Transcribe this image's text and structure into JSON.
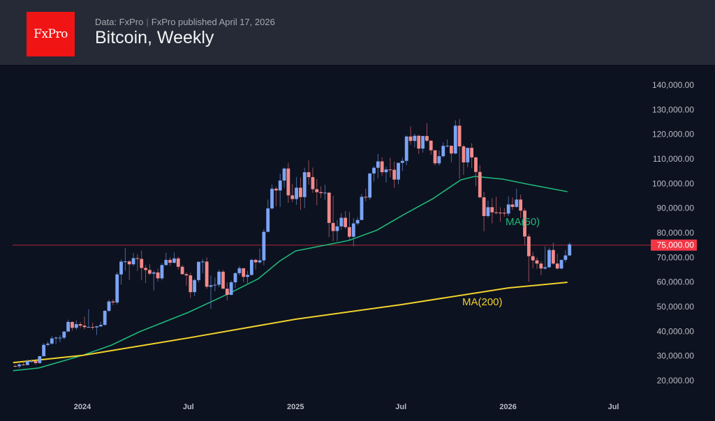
{
  "header": {
    "logo_text": "FxPro",
    "source": "Data: FxPro",
    "published": "FxPro published April 17, 2026",
    "title": "Bitcoin, Weekly"
  },
  "chart_data": {
    "type": "candlestick",
    "title": "Bitcoin, Weekly",
    "ylim": [
      15000,
      145000
    ],
    "y_axis_position": "right",
    "y_ticks": [
      20000,
      30000,
      40000,
      50000,
      60000,
      70000,
      80000,
      90000,
      100000,
      110000,
      120000,
      130000,
      140000
    ],
    "y_tick_labels": [
      "20,000.00",
      "30,000.00",
      "40,000.00",
      "50,000.00",
      "60,000.00",
      "70,000.00",
      "80,000.00",
      "90,000.00",
      "100,000.00",
      "110,000.00",
      "120,000.00",
      "130,000.00",
      "140,000.00"
    ],
    "x_ticks": [
      {
        "date": "2024-01-01",
        "label": "2024"
      },
      {
        "date": "2024-07-01",
        "label": "Jul"
      },
      {
        "date": "2025-01-01",
        "label": "2025"
      },
      {
        "date": "2025-07-01",
        "label": "Jul"
      },
      {
        "date": "2026-01-01",
        "label": "2026"
      },
      {
        "date": "2026-07-01",
        "label": "Jul"
      }
    ],
    "grid": false,
    "colors": {
      "up": "#7ba4f5",
      "down": "#f38a8a",
      "up_wick": "#4c6a9e",
      "down_wick": "#9a4d55",
      "ma50": "#1fb87a",
      "ma200": "#f2d22c",
      "level": "#8b2431",
      "level_label_bg": "#f23645"
    },
    "horizontal_level": {
      "value": 75000,
      "label": "75,000.00"
    },
    "candle_fields": [
      "week",
      "open",
      "high",
      "low",
      "close"
    ],
    "candles": [
      [
        "2023-09-04",
        25900,
        26400,
        25400,
        25800
      ],
      [
        "2023-09-11",
        25800,
        27000,
        25000,
        26500
      ],
      [
        "2023-09-18",
        26500,
        27400,
        26000,
        26300
      ],
      [
        "2023-09-25",
        26300,
        28600,
        26100,
        27900
      ],
      [
        "2023-10-02",
        27900,
        28600,
        27200,
        27900
      ],
      [
        "2023-10-09",
        27900,
        28000,
        26500,
        27100
      ],
      [
        "2023-10-16",
        27100,
        30000,
        26900,
        29900
      ],
      [
        "2023-10-23",
        29900,
        35200,
        29800,
        34500
      ],
      [
        "2023-10-30",
        34500,
        35900,
        33900,
        35000
      ],
      [
        "2023-11-06",
        35000,
        38000,
        34500,
        37100
      ],
      [
        "2023-11-13",
        37100,
        37900,
        34800,
        37400
      ],
      [
        "2023-11-20",
        37400,
        38400,
        35600,
        37400
      ],
      [
        "2023-11-27",
        37400,
        40000,
        36700,
        39900
      ],
      [
        "2023-12-04",
        39900,
        44700,
        39900,
        43800
      ],
      [
        "2023-12-11",
        43800,
        44000,
        40200,
        41400
      ],
      [
        "2023-12-18",
        41400,
        44400,
        40600,
        42900
      ],
      [
        "2023-12-25",
        42900,
        43800,
        41300,
        42300
      ],
      [
        "2024-01-01",
        42300,
        45900,
        40800,
        41700
      ],
      [
        "2024-01-08",
        41700,
        49000,
        41500,
        41750
      ],
      [
        "2024-01-15",
        41750,
        43500,
        40600,
        41600
      ],
      [
        "2024-01-22",
        41600,
        42200,
        38500,
        42000
      ],
      [
        "2024-01-29",
        42000,
        43900,
        41800,
        42600
      ],
      [
        "2024-02-05",
        42600,
        48600,
        42300,
        48300
      ],
      [
        "2024-02-12",
        48300,
        52800,
        47700,
        52100
      ],
      [
        "2024-02-19",
        52100,
        52900,
        50600,
        51700
      ],
      [
        "2024-02-26",
        51700,
        64000,
        50900,
        63100
      ],
      [
        "2024-03-04",
        63100,
        69200,
        59000,
        68300
      ],
      [
        "2024-03-11",
        68300,
        73800,
        64600,
        68400
      ],
      [
        "2024-03-18",
        68400,
        68900,
        60800,
        67200
      ],
      [
        "2024-03-25",
        67200,
        71800,
        66500,
        69700
      ],
      [
        "2024-04-01",
        69700,
        71300,
        64500,
        69400
      ],
      [
        "2024-04-08",
        69400,
        72800,
        60700,
        65700
      ],
      [
        "2024-04-15",
        65700,
        66900,
        59600,
        64900
      ],
      [
        "2024-04-22",
        64900,
        67200,
        62800,
        63400
      ],
      [
        "2024-04-29",
        63400,
        64700,
        56600,
        63900
      ],
      [
        "2024-05-06",
        63900,
        65500,
        60200,
        61500
      ],
      [
        "2024-05-13",
        61500,
        67700,
        60700,
        66900
      ],
      [
        "2024-05-20",
        66900,
        71900,
        66600,
        69000
      ],
      [
        "2024-05-27",
        69000,
        70000,
        66600,
        67800
      ],
      [
        "2024-06-03",
        67800,
        72000,
        67600,
        69600
      ],
      [
        "2024-06-10",
        69600,
        70200,
        65000,
        66200
      ],
      [
        "2024-06-17",
        66200,
        66900,
        63000,
        63200
      ],
      [
        "2024-06-24",
        63200,
        63900,
        58500,
        62700
      ],
      [
        "2024-07-01",
        62700,
        63800,
        53500,
        55900
      ],
      [
        "2024-07-08",
        55900,
        61400,
        54300,
        60800
      ],
      [
        "2024-07-15",
        60800,
        68400,
        59900,
        68200
      ],
      [
        "2024-07-22",
        68200,
        69400,
        63500,
        68300
      ],
      [
        "2024-07-29",
        68300,
        70000,
        57200,
        58100
      ],
      [
        "2024-08-05",
        58100,
        62700,
        49100,
        58700
      ],
      [
        "2024-08-12",
        58700,
        61800,
        56200,
        58900
      ],
      [
        "2024-08-19",
        58900,
        65000,
        57900,
        64200
      ],
      [
        "2024-08-26",
        64200,
        64900,
        57200,
        57300
      ],
      [
        "2024-09-02",
        57300,
        59800,
        52500,
        54800
      ],
      [
        "2024-09-09",
        54800,
        60600,
        54600,
        59900
      ],
      [
        "2024-09-16",
        59900,
        64000,
        57600,
        63600
      ],
      [
        "2024-09-23",
        63600,
        66500,
        62700,
        65600
      ],
      [
        "2024-09-30",
        65600,
        65600,
        60000,
        62100
      ],
      [
        "2024-10-07",
        62100,
        64500,
        58900,
        62900
      ],
      [
        "2024-10-14",
        62900,
        69400,
        62500,
        69000
      ],
      [
        "2024-10-21",
        69000,
        69500,
        65100,
        68000
      ],
      [
        "2024-10-28",
        68000,
        73600,
        67500,
        68800
      ],
      [
        "2024-11-04",
        68800,
        81500,
        66800,
        80400
      ],
      [
        "2024-11-11",
        80400,
        93500,
        80200,
        89900
      ],
      [
        "2024-11-18",
        89900,
        99600,
        89400,
        97900
      ],
      [
        "2024-11-25",
        97900,
        98700,
        90800,
        97200
      ],
      [
        "2024-12-02",
        97200,
        104000,
        90500,
        101200
      ],
      [
        "2024-12-09",
        101200,
        106500,
        98300,
        106100
      ],
      [
        "2024-12-16",
        106100,
        108400,
        92200,
        95200
      ],
      [
        "2024-12-23",
        95200,
        99900,
        92500,
        93700
      ],
      [
        "2024-12-30",
        93700,
        102700,
        91400,
        98300
      ],
      [
        "2025-01-06",
        98300,
        102500,
        89300,
        94500
      ],
      [
        "2025-01-13",
        94500,
        106400,
        90000,
        104600
      ],
      [
        "2025-01-20",
        104600,
        109400,
        99500,
        102600
      ],
      [
        "2025-01-27",
        102600,
        106500,
        96200,
        97700
      ],
      [
        "2025-02-03",
        97700,
        101800,
        91200,
        96500
      ],
      [
        "2025-02-10",
        96500,
        98800,
        94100,
        96100
      ],
      [
        "2025-02-17",
        96100,
        99500,
        93400,
        96300
      ],
      [
        "2025-02-24",
        96300,
        96500,
        78200,
        84000
      ],
      [
        "2025-03-03",
        84000,
        95000,
        76600,
        80700
      ],
      [
        "2025-03-10",
        80700,
        85200,
        76600,
        82600
      ],
      [
        "2025-03-17",
        82600,
        88000,
        81200,
        86100
      ],
      [
        "2025-03-24",
        86100,
        88800,
        81600,
        82300
      ],
      [
        "2025-03-31",
        82300,
        88500,
        77000,
        78400
      ],
      [
        "2025-04-07",
        78400,
        86000,
        74500,
        83800
      ],
      [
        "2025-04-14",
        83800,
        86400,
        83100,
        85200
      ],
      [
        "2025-04-21",
        85200,
        95800,
        85100,
        94600
      ],
      [
        "2025-04-28",
        94600,
        97900,
        92800,
        94300
      ],
      [
        "2025-05-05",
        94300,
        104100,
        93400,
        104100
      ],
      [
        "2025-05-12",
        104100,
        107100,
        100800,
        106400
      ],
      [
        "2025-05-19",
        106400,
        112000,
        102100,
        109000
      ],
      [
        "2025-05-26",
        109000,
        110700,
        103100,
        104600
      ],
      [
        "2025-06-02",
        104600,
        106800,
        100400,
        105700
      ],
      [
        "2025-06-09",
        105700,
        110500,
        102600,
        105600
      ],
      [
        "2025-06-16",
        105600,
        108900,
        98200,
        101600
      ],
      [
        "2025-06-23",
        101600,
        108500,
        99700,
        108400
      ],
      [
        "2025-06-30",
        108400,
        110500,
        105100,
        109200
      ],
      [
        "2025-07-07",
        109200,
        119500,
        107500,
        119100
      ],
      [
        "2025-07-14",
        119100,
        123200,
        115700,
        117300
      ],
      [
        "2025-07-21",
        117300,
        120200,
        114700,
        119400
      ],
      [
        "2025-07-28",
        119400,
        119800,
        112000,
        114200
      ],
      [
        "2025-08-04",
        114200,
        119300,
        112600,
        119300
      ],
      [
        "2025-08-11",
        119300,
        124500,
        116800,
        117400
      ],
      [
        "2025-08-18",
        117400,
        117600,
        111700,
        113500
      ],
      [
        "2025-08-25",
        113500,
        113600,
        107300,
        108200
      ],
      [
        "2025-09-01",
        108200,
        113400,
        107300,
        111100
      ],
      [
        "2025-09-08",
        111100,
        116700,
        110600,
        115300
      ],
      [
        "2025-09-15",
        115300,
        117900,
        114600,
        115350
      ],
      [
        "2025-09-22",
        115350,
        115400,
        108600,
        112200
      ],
      [
        "2025-09-29",
        112200,
        125700,
        111900,
        123500
      ],
      [
        "2025-10-06",
        123500,
        126200,
        102000,
        115100
      ],
      [
        "2025-10-13",
        115100,
        115800,
        103500,
        108600
      ],
      [
        "2025-10-20",
        108600,
        114000,
        106600,
        114500
      ],
      [
        "2025-10-27",
        114500,
        116400,
        106300,
        110600
      ],
      [
        "2025-11-03",
        110600,
        110900,
        98900,
        104700
      ],
      [
        "2025-11-10",
        104700,
        107500,
        94000,
        94400
      ],
      [
        "2025-11-17",
        94400,
        96600,
        80600,
        86800
      ],
      [
        "2025-11-24",
        86800,
        93100,
        86100,
        90400
      ],
      [
        "2025-12-01",
        90400,
        94100,
        83800,
        88300
      ],
      [
        "2025-12-08",
        88300,
        94600,
        87500,
        88200
      ],
      [
        "2025-12-15",
        88200,
        90400,
        84500,
        88100
      ],
      [
        "2025-12-22",
        88100,
        90000,
        86500,
        87800
      ],
      [
        "2025-12-29",
        87800,
        94800,
        86800,
        91500
      ],
      [
        "2026-01-05",
        91500,
        94400,
        89300,
        90500
      ],
      [
        "2026-01-12",
        90500,
        97900,
        90200,
        93500
      ],
      [
        "2026-01-19",
        93500,
        95500,
        86000,
        89000
      ],
      [
        "2026-01-26",
        89000,
        90000,
        75000,
        78500
      ],
      [
        "2026-02-02",
        78500,
        79500,
        60100,
        70500
      ],
      [
        "2026-02-09",
        70500,
        72200,
        65500,
        68800
      ],
      [
        "2026-02-16",
        68800,
        70000,
        65300,
        67500
      ],
      [
        "2026-02-23",
        67500,
        68500,
        62800,
        65500
      ],
      [
        "2026-03-02",
        65500,
        74500,
        65000,
        66000
      ],
      [
        "2026-03-09",
        66000,
        74000,
        65800,
        73000
      ],
      [
        "2026-03-16",
        73000,
        76000,
        67000,
        67500
      ],
      [
        "2026-03-23",
        67500,
        71500,
        65000,
        65500
      ],
      [
        "2026-03-30",
        65500,
        69000,
        65200,
        69000
      ],
      [
        "2026-04-06",
        69000,
        73000,
        68000,
        70800
      ],
      [
        "2026-04-13",
        70800,
        76100,
        70600,
        75300
      ]
    ],
    "series": [
      {
        "name": "MA(50)",
        "points": [
          [
            "2023-09-04",
            24000
          ],
          [
            "2023-10-18",
            25100
          ],
          [
            "2024-01-01",
            30200
          ],
          [
            "2024-02-20",
            34400
          ],
          [
            "2024-04-08",
            39800
          ],
          [
            "2024-07-01",
            47700
          ],
          [
            "2024-09-11",
            55600
          ],
          [
            "2024-10-29",
            61300
          ],
          [
            "2024-12-04",
            68400
          ],
          [
            "2025-01-01",
            72600
          ],
          [
            "2025-02-26",
            75200
          ],
          [
            "2025-04-03",
            76900
          ],
          [
            "2025-05-21",
            81100
          ],
          [
            "2025-07-06",
            87400
          ],
          [
            "2025-08-25",
            93900
          ],
          [
            "2025-10-12",
            101500
          ],
          [
            "2025-11-05",
            102900
          ],
          [
            "2025-12-23",
            101800
          ],
          [
            "2026-02-09",
            99500
          ],
          [
            "2026-04-13",
            96700
          ]
        ]
      },
      {
        "name": "MA(200)",
        "points": [
          [
            "2023-09-04",
            27300
          ],
          [
            "2024-01-01",
            30200
          ],
          [
            "2024-07-01",
            37300
          ],
          [
            "2025-01-01",
            44900
          ],
          [
            "2025-07-01",
            50800
          ],
          [
            "2026-01-01",
            57600
          ],
          [
            "2026-04-13",
            59900
          ]
        ]
      }
    ]
  }
}
